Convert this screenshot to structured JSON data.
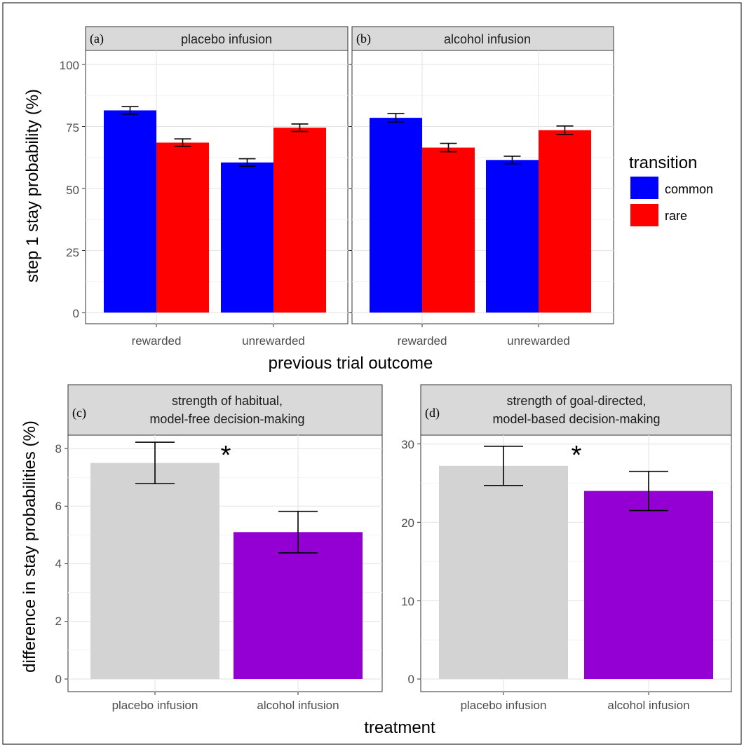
{
  "chart_data": [
    {
      "type": "bar",
      "panel": "(a)",
      "title": "placebo infusion",
      "categories": [
        "rewarded",
        "unrewarded"
      ],
      "series": [
        {
          "name": "common",
          "color": "#0000ff",
          "values": [
            81.5,
            60.5
          ],
          "err": [
            1.5,
            1.5
          ]
        },
        {
          "name": "rare",
          "color": "#ff0000",
          "values": [
            68.5,
            74.5
          ],
          "err": [
            1.5,
            1.5
          ]
        }
      ],
      "ylim": [
        0,
        100
      ],
      "yticks": [
        "0",
        "25",
        "50",
        "75",
        "100"
      ],
      "ylabel": "step 1 stay probability (%)",
      "xlabel": "previous trial outcome"
    },
    {
      "type": "bar",
      "panel": "(b)",
      "title": "alcohol infusion",
      "categories": [
        "rewarded",
        "unrewarded"
      ],
      "series": [
        {
          "name": "common",
          "color": "#0000ff",
          "values": [
            78.5,
            61.5
          ],
          "err": [
            1.7,
            1.5
          ]
        },
        {
          "name": "rare",
          "color": "#ff0000",
          "values": [
            66.5,
            73.5
          ],
          "err": [
            1.7,
            1.7
          ]
        }
      ],
      "ylim": [
        0,
        100
      ],
      "yticks": [
        "0",
        "25",
        "50",
        "75",
        "100"
      ]
    },
    {
      "type": "bar",
      "panel": "(c)",
      "title_line1": "strength of habitual,",
      "title_line2": "model-free decision-making",
      "categories": [
        "placebo infusion",
        "alcohol infusion"
      ],
      "values": [
        7.5,
        5.1
      ],
      "err": [
        0.72,
        0.72
      ],
      "colors": [
        "#d3d3d3",
        "#9400d3"
      ],
      "ylim": [
        0,
        8.7
      ],
      "yticks": [
        "0",
        "2",
        "4",
        "6",
        "8"
      ],
      "significance": "*",
      "ylabel": "difference in stay probabilities (%)"
    },
    {
      "type": "bar",
      "panel": "(d)",
      "title_line1": "strength of goal-directed,",
      "title_line2": "model-based decision-making",
      "categories": [
        "placebo infusion",
        "alcohol infusion"
      ],
      "values": [
        27.2,
        24.0
      ],
      "err": [
        2.5,
        2.5
      ],
      "colors": [
        "#d3d3d3",
        "#9400d3"
      ],
      "ylim": [
        0,
        31
      ],
      "yticks": [
        "0",
        "10",
        "20",
        "30"
      ],
      "significance": "*",
      "xlabel": "treatment"
    }
  ],
  "legend": {
    "title": "transition",
    "items": [
      {
        "label": "common",
        "color": "#0000ff"
      },
      {
        "label": "rare",
        "color": "#ff0000"
      }
    ]
  }
}
